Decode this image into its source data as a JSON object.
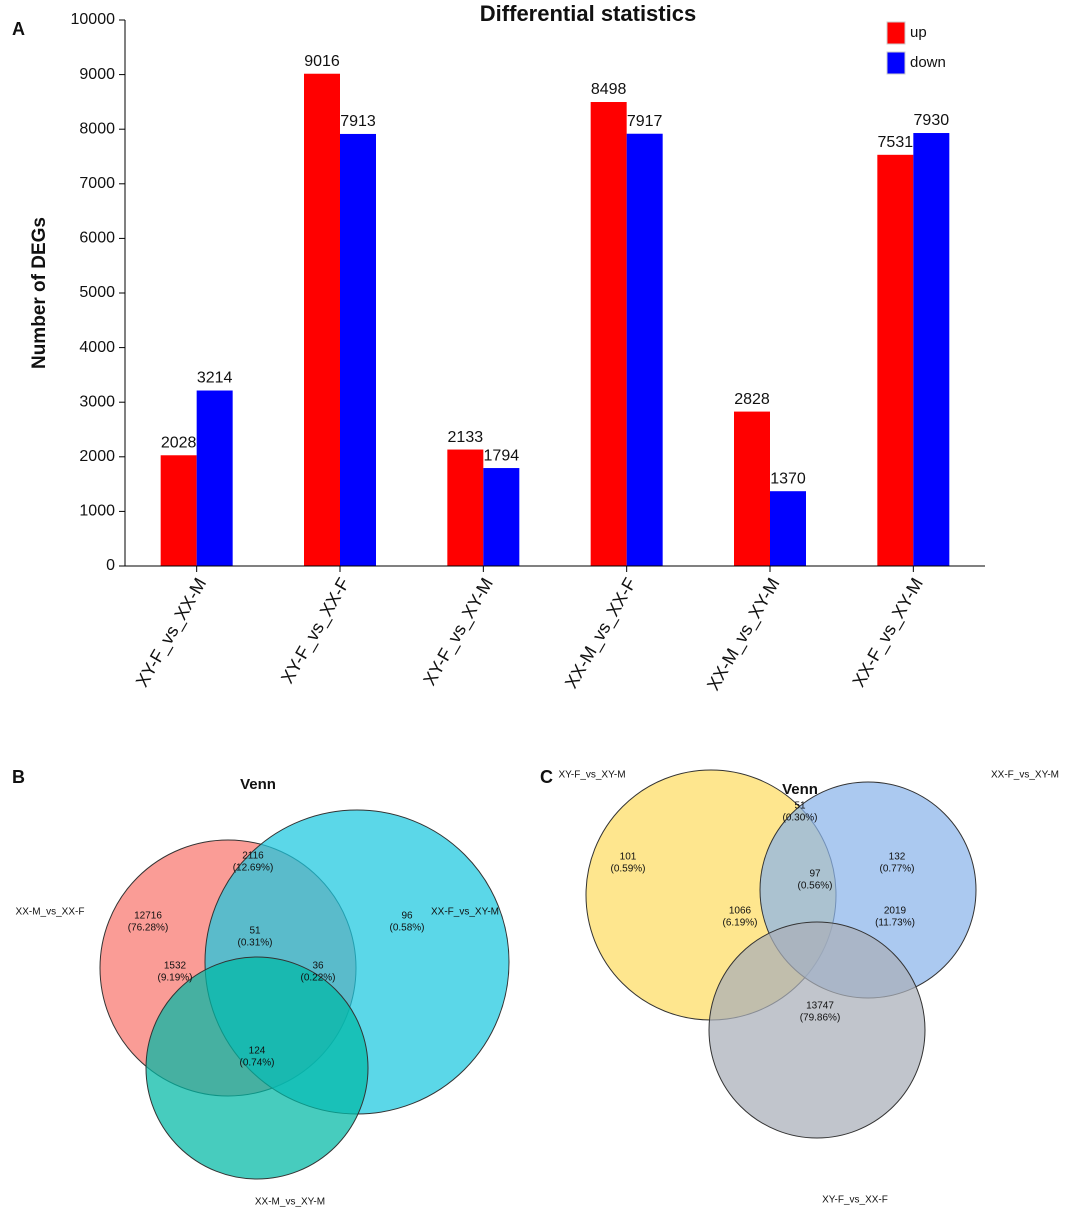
{
  "chart_data": [
    {
      "type": "bar",
      "panel": "A",
      "title": "Differential statistics",
      "ylabel": "Number of DEGs",
      "categories": [
        "XY-F_vs_XX-M",
        "XY-F_vs_XX-F",
        "XY-F_vs_XY-M",
        "XX-M_vs_XX-F",
        "XX-M_vs_XY-M",
        "XX-F_vs_XY-M"
      ],
      "series": [
        {
          "name": "up",
          "color": "#ff0000",
          "values": [
            2028,
            9016,
            2133,
            8498,
            2828,
            7531
          ]
        },
        {
          "name": "down",
          "color": "#0000ff",
          "values": [
            3214,
            7913,
            1794,
            7917,
            1370,
            7930
          ]
        }
      ],
      "ylim": [
        0,
        10000
      ],
      "yticks": [
        0,
        1000,
        2000,
        3000,
        4000,
        5000,
        6000,
        7000,
        8000,
        9000,
        10000
      ],
      "legend": "upper right"
    },
    {
      "type": "venn",
      "panel": "B",
      "title": "Venn",
      "sets": [
        {
          "name": "XX-M_vs_XX-F",
          "color": "#f8766d"
        },
        {
          "name": "XX-F_vs_XY-M",
          "color": "#1cc8df"
        },
        {
          "name": "XX-M_vs_XY-M",
          "color": "#00b8a5"
        }
      ],
      "counts": [
        12716,
        2116,
        96,
        51,
        1532,
        36,
        124
      ],
      "percents": [
        76.28,
        12.69,
        0.58,
        0.31,
        9.19,
        0.22,
        0.74
      ],
      "percent_labels": [
        "(76.28%)",
        "(12.69%)",
        "(0.58%)",
        "(0.31%)",
        "(9.19%)",
        "(0.22%)",
        "(0.74%)"
      ]
    },
    {
      "type": "venn",
      "panel": "C",
      "title": "Venn",
      "sets": [
        {
          "name": "XY-F_vs_XY-M",
          "color": "#fddd63"
        },
        {
          "name": "XX-F_vs_XY-M",
          "color": "#8ab4ea"
        },
        {
          "name": "XY-F_vs_XX-F",
          "color": "#a9aeb8"
        }
      ],
      "counts": [
        101,
        51,
        132,
        97,
        1066,
        2019,
        13747
      ],
      "percents": [
        0.59,
        0.3,
        0.77,
        0.56,
        6.19,
        11.73,
        79.86
      ],
      "percent_labels": [
        "(0.59%)",
        "(0.30%)",
        "(0.77%)",
        "(0.56%)",
        "(6.19%)",
        "(11.73%)",
        "(79.86%)"
      ]
    }
  ]
}
